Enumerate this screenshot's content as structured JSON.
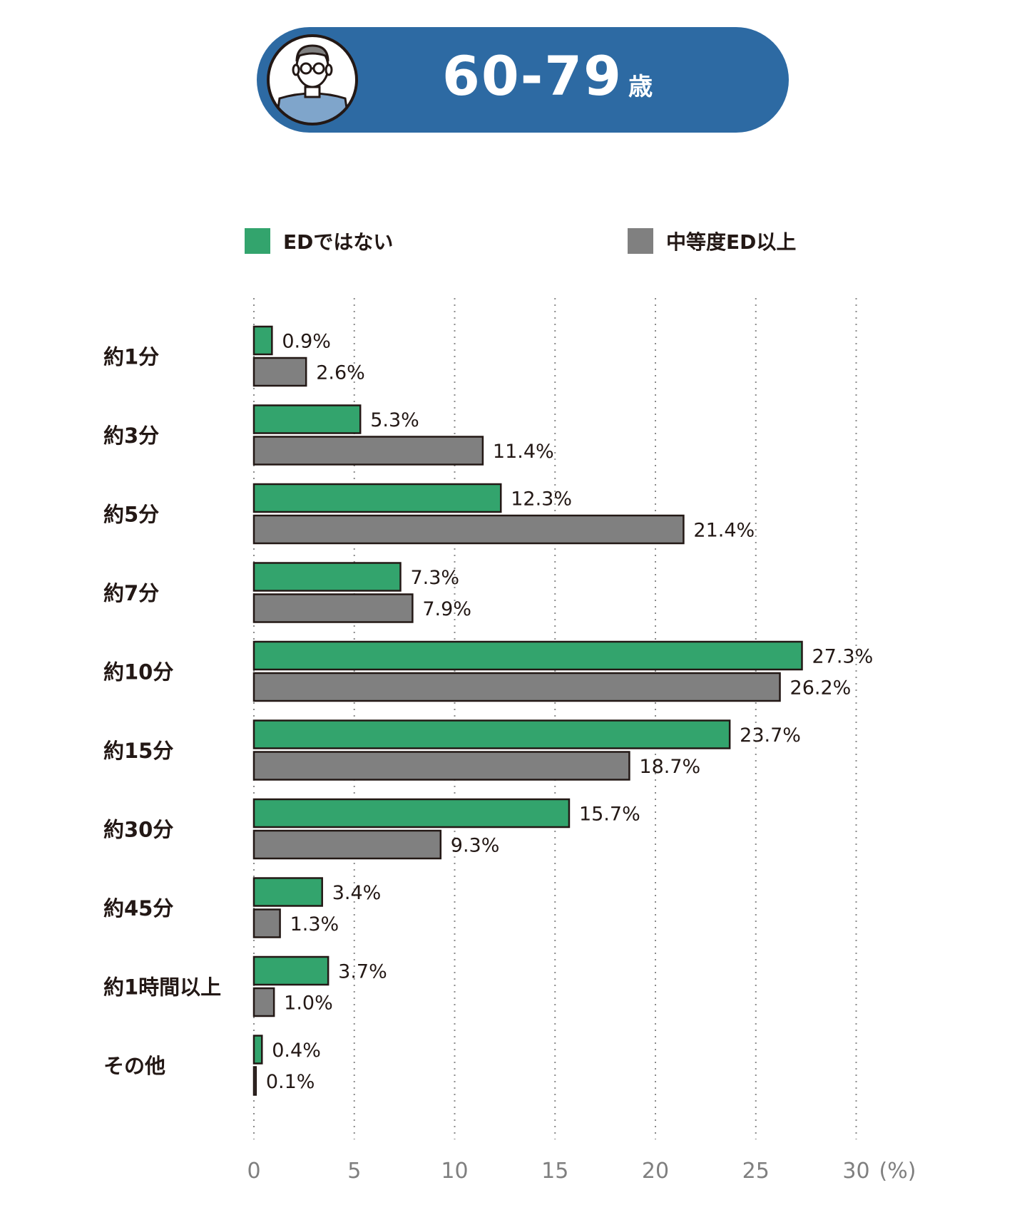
{
  "header": {
    "age_range": "60-79",
    "age_unit": "歳",
    "avatar_icon": "man-with-glasses-avatar-icon",
    "background_color": "#2d6aa3"
  },
  "legend": [
    {
      "label": "EDではない",
      "color": "#33a46d"
    },
    {
      "label": "中等度ED以上",
      "color": "#808080"
    }
  ],
  "chart_data": {
    "type": "bar",
    "orientation": "horizontal",
    "categories": [
      "約1分",
      "約3分",
      "約5分",
      "約7分",
      "約10分",
      "約15分",
      "約30分",
      "約45分",
      "約1時間以上",
      "その他"
    ],
    "series": [
      {
        "name": "EDではない",
        "color": "#33a46d",
        "values": [
          0.9,
          5.3,
          12.3,
          7.3,
          27.3,
          23.7,
          15.7,
          3.4,
          3.7,
          0.4
        ],
        "labels": [
          "0.9%",
          "5.3%",
          "12.3%",
          "7.3%",
          "27.3%",
          "23.7%",
          "15.7%",
          "3.4%",
          "3.7%",
          "0.4%"
        ]
      },
      {
        "name": "中等度ED以上",
        "color": "#808080",
        "values": [
          2.6,
          11.4,
          21.4,
          7.9,
          26.2,
          18.7,
          9.3,
          1.3,
          1.0,
          0.1
        ],
        "labels": [
          "2.6%",
          "11.4%",
          "21.4%",
          "7.9%",
          "26.2%",
          "18.7%",
          "9.3%",
          "1.3%",
          "1.0%",
          "0.1%"
        ]
      }
    ],
    "xlim": [
      0,
      30
    ],
    "xticks": [
      0,
      5,
      10,
      15,
      20,
      25,
      30
    ],
    "xtick_labels": [
      "0",
      "5",
      "10",
      "15",
      "20",
      "25",
      "30"
    ],
    "xunit": "(%)",
    "grid": "vertical-dotted",
    "legend_position": "top"
  }
}
